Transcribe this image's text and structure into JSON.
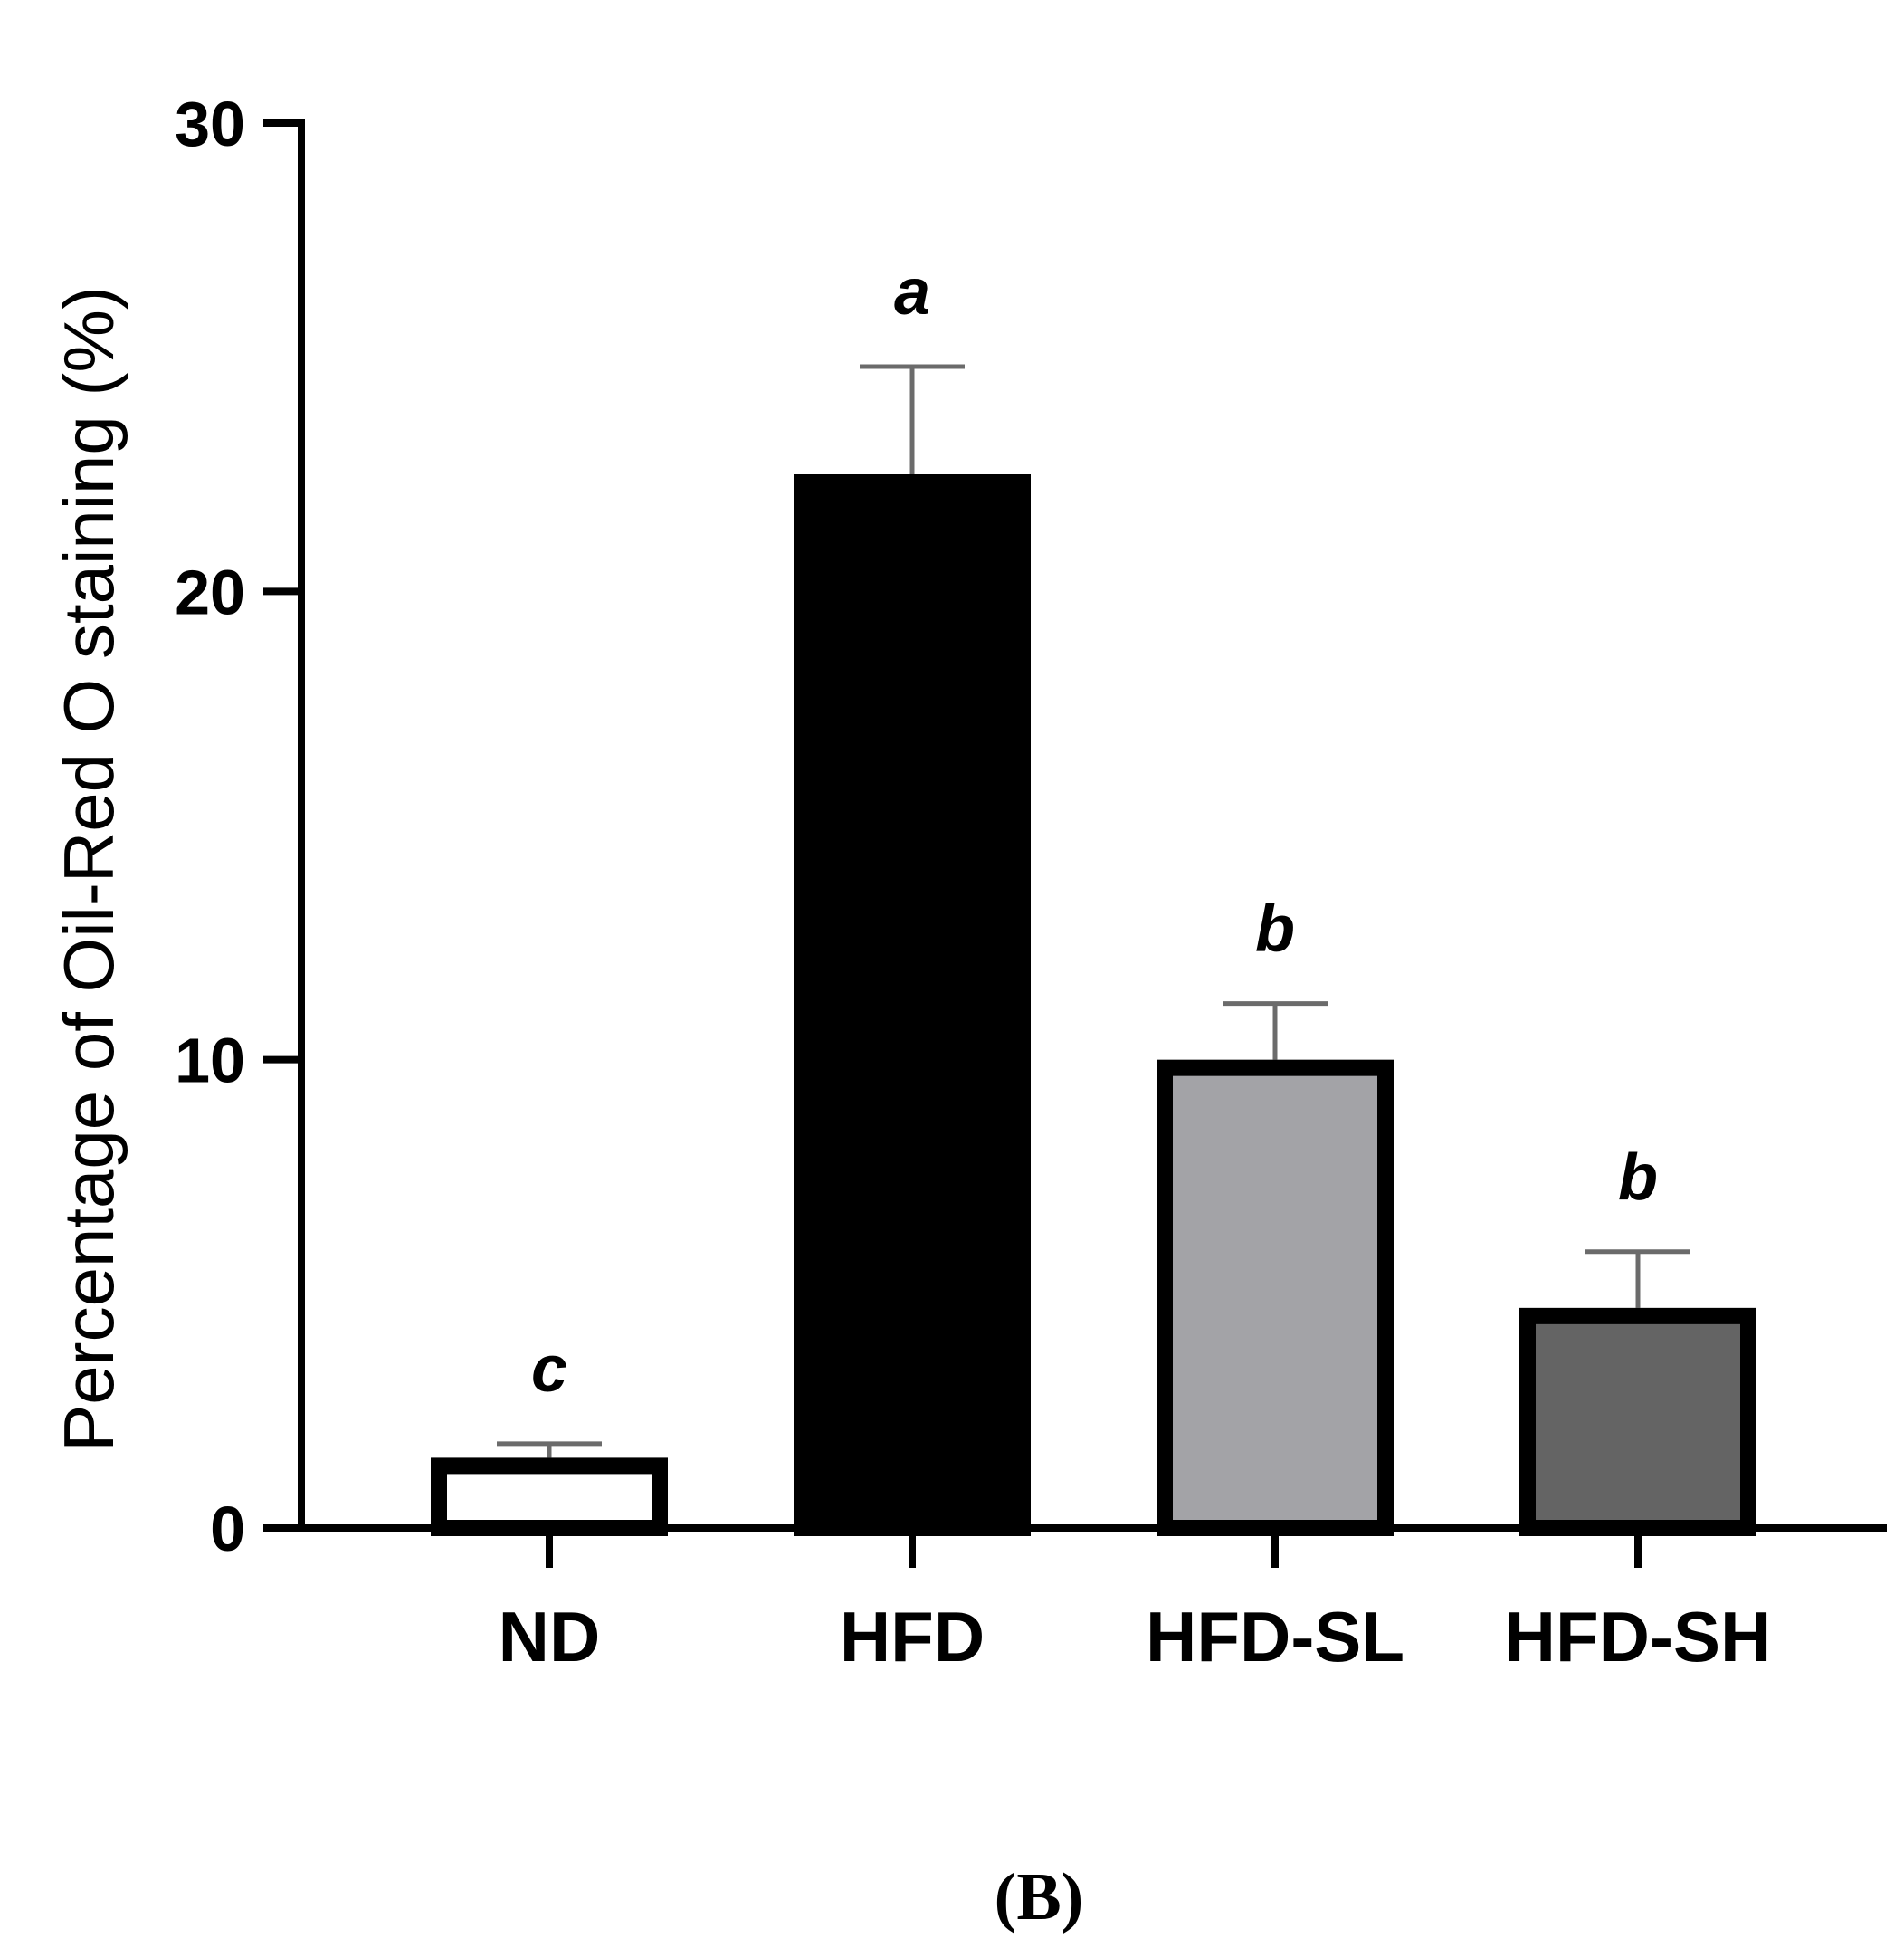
{
  "chart_data": {
    "type": "bar",
    "categories": [
      "ND",
      "HFD",
      "HFD-SL",
      "HFD-SH"
    ],
    "values": [
      1.5,
      22.5,
      10.0,
      4.7
    ],
    "errors": [
      0.3,
      2.3,
      1.2,
      1.2
    ],
    "significance_letters": [
      "c",
      "a",
      "b",
      "b"
    ],
    "colors": [
      "#ffffff",
      "#000000",
      "#a3a3a7",
      "#646464"
    ],
    "error_bar_color": "#6b6b6b",
    "ylabel": "Percentage of Oil-Red O staining (%)",
    "xlabel": "",
    "ylim": [
      0,
      30
    ],
    "yticks": [
      0,
      10,
      20,
      30
    ],
    "grid": false,
    "legend": "none"
  },
  "panel_label": "(B)"
}
